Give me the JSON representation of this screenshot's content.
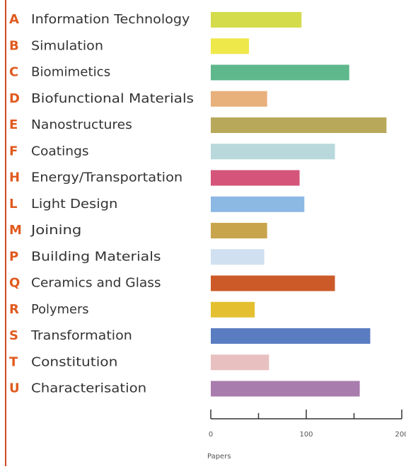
{
  "chart_data": {
    "type": "barh",
    "codes": [
      "A",
      "B",
      "C",
      "D",
      "E",
      "F",
      "H",
      "L",
      "M",
      "P",
      "Q",
      "R",
      "S",
      "T",
      "U"
    ],
    "categories": [
      "Information Technology",
      "Simulation",
      "Biomimetics",
      "Biofunctional Materials",
      "Nanostructures",
      "Coatings",
      "Energy/Transportation",
      "Light Design",
      "Joining",
      "Building Materials",
      "Ceramics and Glass",
      "Polymers",
      "Transformation",
      "Constitution",
      "Characterisation"
    ],
    "values": [
      95,
      40,
      145,
      59,
      184,
      130,
      93,
      98,
      59,
      56,
      130,
      46,
      167,
      61,
      156
    ],
    "colors": [
      "#d4dc4c",
      "#eee84a",
      "#5fb88c",
      "#e8b07a",
      "#b8a85a",
      "#b8d8dc",
      "#d4547a",
      "#8cb8e4",
      "#c8a44c",
      "#d0e0f0",
      "#cc5a28",
      "#e4c030",
      "#5a7cc0",
      "#e8c0c0",
      "#a87cac"
    ],
    "xlim": [
      0,
      200
    ],
    "xticks": [
      0,
      100,
      200
    ],
    "xminorticks": [
      50,
      150
    ],
    "xlabel": "Papers"
  }
}
